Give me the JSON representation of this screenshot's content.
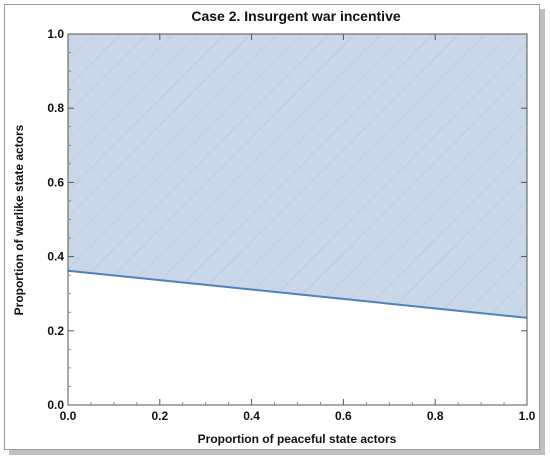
{
  "chart_data": {
    "type": "area",
    "title": "Case 2. Insurgent war incentive",
    "xlabel": "Proportion of peaceful state actors",
    "ylabel": "Proportion of warlike state actors",
    "xlim": [
      0,
      1
    ],
    "ylim": [
      0,
      1
    ],
    "xticks": [
      "0.0",
      "0.2",
      "0.4",
      "0.6",
      "0.8",
      "1.0"
    ],
    "yticks": [
      "0.0",
      "0.2",
      "0.4",
      "0.6",
      "0.8",
      "1.0"
    ],
    "grid": false,
    "series": [
      {
        "x": [
          0,
          1
        ],
        "y": [
          0.362,
          0.235
        ],
        "fill": "above",
        "line_color": "#4f81bd",
        "fill_color": "#c9d7e9"
      }
    ]
  }
}
